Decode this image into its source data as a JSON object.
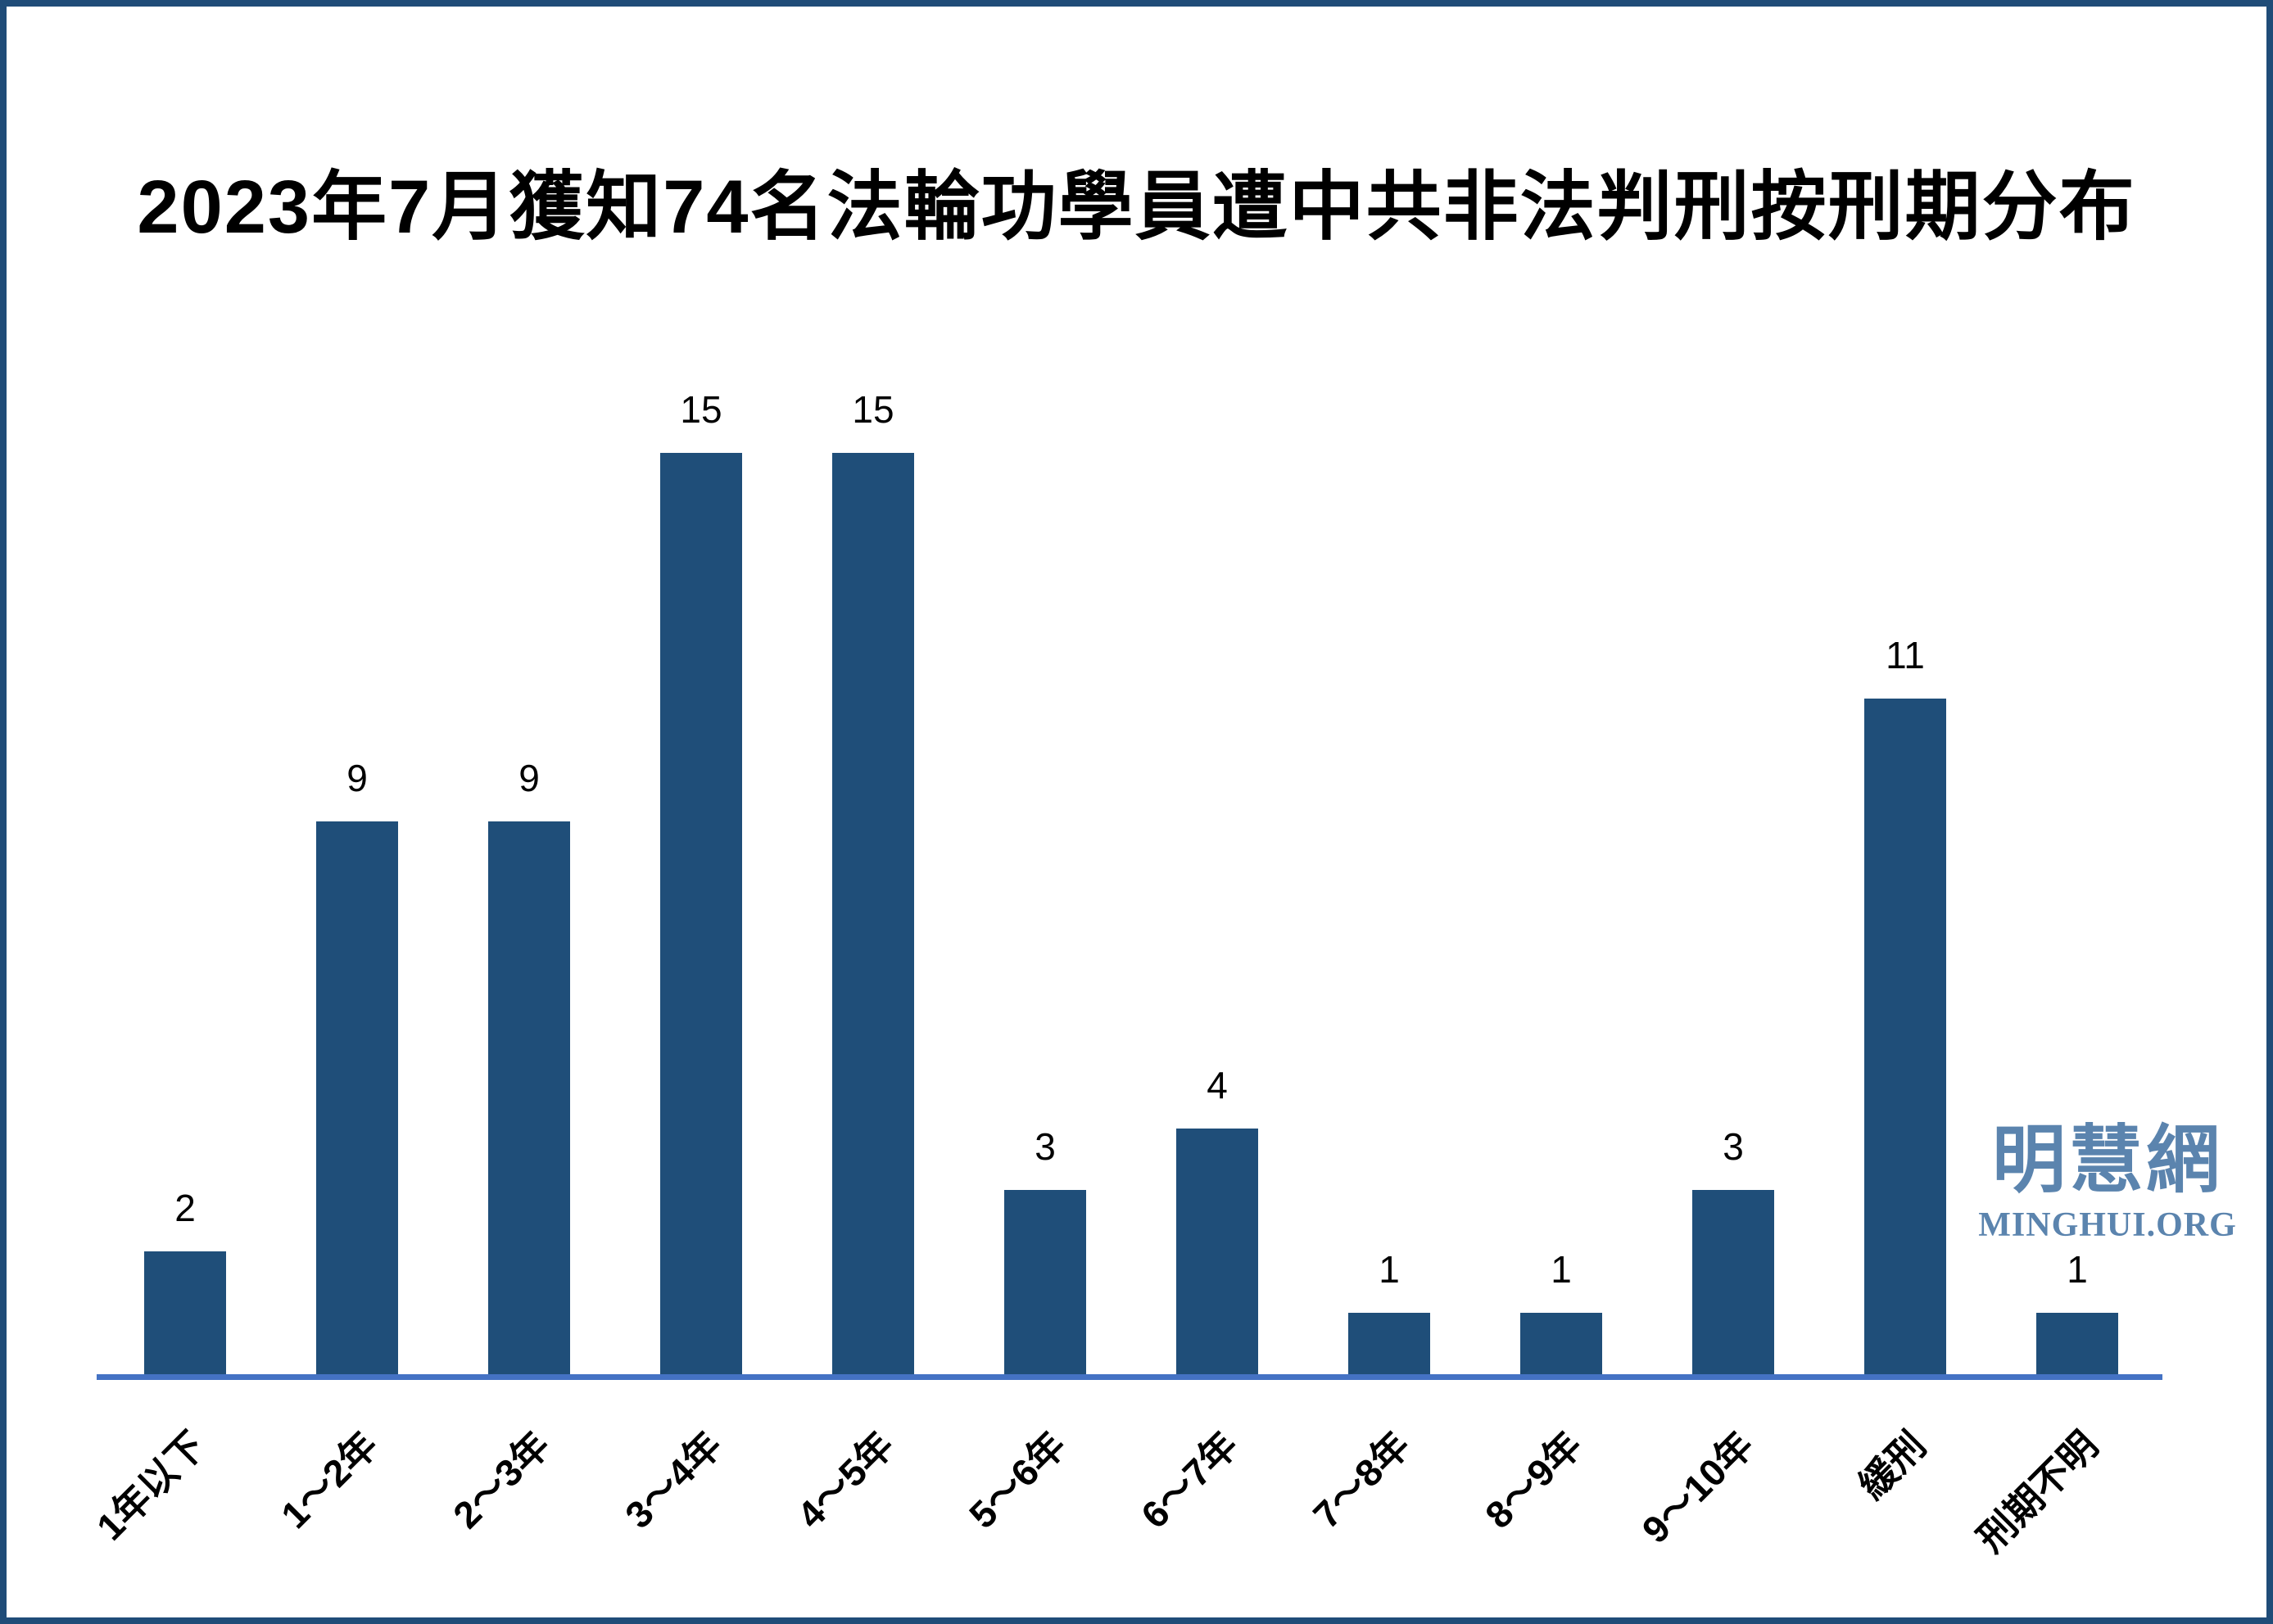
{
  "title": "2023年7月獲知74名法輪功學員遭中共非法判刑按刑期分布",
  "chart_data": {
    "type": "bar",
    "title": "2023年7月獲知74名法輪功學員遭中共非法判刑按刑期分布",
    "categories": [
      "1年以下",
      "1～2年",
      "2～3年",
      "3～4年",
      "4～5年",
      "5～6年",
      "6～7年",
      "7～8年",
      "8～9年",
      "9～10年",
      "緩刑",
      "刑期不明"
    ],
    "values": [
      2,
      9,
      9,
      15,
      15,
      3,
      4,
      1,
      1,
      3,
      11,
      1
    ],
    "xlabel": "",
    "ylabel": "",
    "ylim": [
      0,
      16
    ],
    "grid": false,
    "legend": false,
    "data_labels_shown": true,
    "x_tick_rotation_deg": 45,
    "bar_color": "#1F4E79",
    "baseline_color": "#4472C4"
  },
  "watermark": {
    "cjk": "明慧網",
    "latin": "MINGHUI.ORG",
    "color": "#5B84AE"
  },
  "frame": {
    "border_color": "#1F4C78",
    "background": "#FFFFFF"
  }
}
